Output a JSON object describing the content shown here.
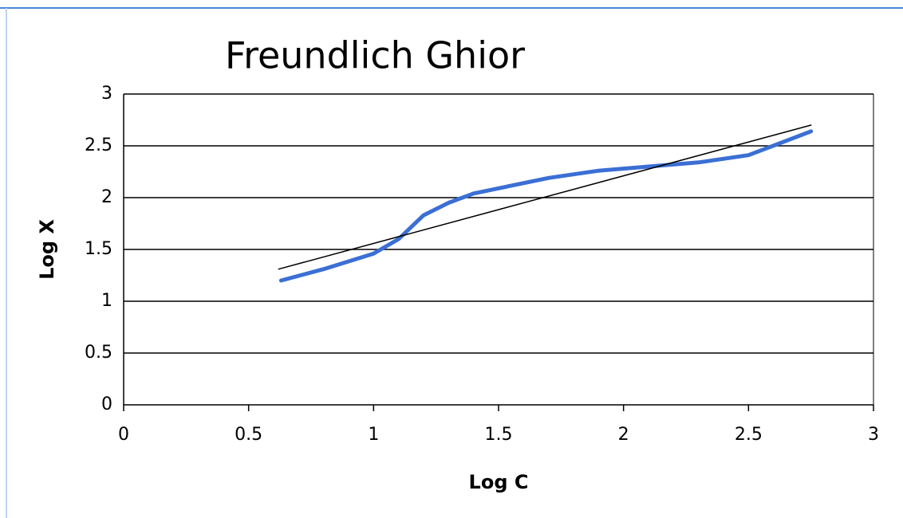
{
  "chart_data": {
    "type": "line",
    "title": "Freundlich Ghior",
    "x_label": "Log C",
    "y_label": "Log X",
    "series": [
      {
        "color": "#3b6fd4",
        "x": [
          0.63,
          0.8,
          1.0,
          1.1,
          1.2,
          1.3,
          1.4,
          1.5,
          1.7,
          1.9,
          2.1,
          2.3,
          2.5,
          2.75
        ],
        "values": [
          1.2,
          1.31,
          1.46,
          1.6,
          1.83,
          1.95,
          2.04,
          2.09,
          2.19,
          2.26,
          2.3,
          2.34,
          2.41,
          2.64
        ]
      },
      {
        "color": "#000000",
        "x": [
          0.62,
          2.75
        ],
        "values": [
          1.31,
          2.7
        ]
      }
    ],
    "xlim": [
      0,
      3
    ],
    "xticks": [
      0,
      0.5,
      1,
      1.5,
      2,
      2.5,
      3
    ],
    "ylim": [
      0,
      3
    ],
    "yticks": [
      0,
      0.5,
      1,
      1.5,
      2,
      2.5,
      3
    ],
    "grid": true
  }
}
